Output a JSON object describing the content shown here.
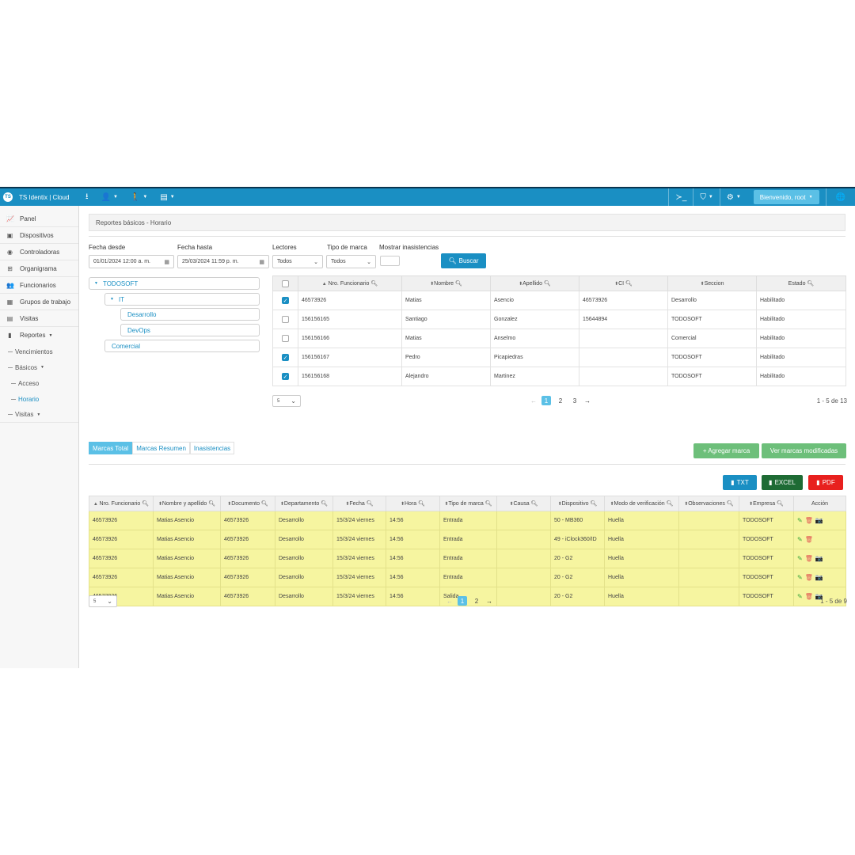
{
  "app": {
    "title": "TS Identix | Cloud",
    "logo_text": "TS"
  },
  "topbar": {
    "welcome": "Bienvenido, root",
    "nav_icons": [
      "download-icon",
      "user-cog-icon",
      "walk-arrow-icon",
      "id-card-icon"
    ],
    "right_icons": [
      "terminal-icon",
      "shield-icon",
      "gear-icon",
      "globe-icon"
    ]
  },
  "sidebar": {
    "items": [
      "Panel",
      "Dispositivos",
      "Controladoras",
      "Organigrama",
      "Funcionarios",
      "Grupos de trabajo",
      "Visitas"
    ],
    "reportes": "Reportes",
    "vencimientos": "Vencimientos",
    "basicos": "Básicos",
    "acceso": "Acceso",
    "horario": "Horario",
    "visitas_sub": "Visitas"
  },
  "breadcrumb": "Reportes básicos - Horario",
  "filters": {
    "fecha_desde_label": "Fecha desde",
    "fecha_desde": "01/01/2024 12:00 a. m.",
    "fecha_hasta_label": "Fecha hasta",
    "fecha_hasta": "25/03/2024 11:59 p. m.",
    "lectores_label": "Lectores",
    "lectores": "Todos",
    "tipo_label": "Tipo de marca",
    "tipo": "Todos",
    "inasist_label": "Mostrar inasistencias",
    "buscar": "Buscar"
  },
  "tree": {
    "root": "TODOSOFT",
    "it": "IT",
    "desarrollo": "Desarrollo",
    "devops": "DevOps",
    "comercial": "Comercial"
  },
  "employees": {
    "headers": [
      "Nro. Funcionario",
      "Nombre",
      "Apellido",
      "CI",
      "Seccion",
      "Estado"
    ],
    "rows": [
      {
        "checked": true,
        "nro": "46573926",
        "nombre": "Matias",
        "apellido": "Asencio",
        "ci": "46573926",
        "seccion": "Desarrollo",
        "estado": "Habilitado"
      },
      {
        "checked": false,
        "nro": "156156165",
        "nombre": "Santiago",
        "apellido": "Gonzalez",
        "ci": "15644894",
        "seccion": "TODOSOFT",
        "estado": "Habilitado"
      },
      {
        "checked": false,
        "nro": "156156166",
        "nombre": "Matias",
        "apellido": "Anselmo",
        "ci": "",
        "seccion": "Comercial",
        "estado": "Habilitado"
      },
      {
        "checked": true,
        "nro": "156156167",
        "nombre": "Pedro",
        "apellido": "Picapiedras",
        "ci": "",
        "seccion": "TODOSOFT",
        "estado": "Habilitado"
      },
      {
        "checked": true,
        "nro": "156156168",
        "nombre": "Alejandro",
        "apellido": "Martinez",
        "ci": "",
        "seccion": "TODOSOFT",
        "estado": "Habilitado"
      }
    ],
    "page_size": "5",
    "pages": [
      "1",
      "2",
      "3"
    ],
    "count": "1 - 5 de 13"
  },
  "tabs": [
    "Marcas Total",
    "Marcas Resumen",
    "Inasistencias"
  ],
  "buttons": {
    "agregar": "+ Agregar marca",
    "ver_modificadas": "Ver marcas modificadas",
    "txt": "TXT",
    "excel": "EXCEL",
    "pdf": "PDF"
  },
  "colors": {
    "primary": "#1a8fc3",
    "green": "#6dbf7a",
    "excel": "#1e6b34",
    "pdf": "#e8201e",
    "highlight": "#f6f5a0"
  },
  "marks": {
    "headers": [
      "Nro. Funcionario",
      "Nombre y apellido",
      "Documento",
      "Departamento",
      "Fecha",
      "Hora",
      "Tipo de marca",
      "Causa",
      "Dispositivo",
      "Modo de verificación",
      "Observaciones",
      "Empresa",
      "Acción"
    ],
    "rows": [
      {
        "nro": "46573926",
        "nombre": "Matias Asencio",
        "doc": "46573926",
        "depto": "Desarrollo",
        "fecha": "15/3/24 viernes",
        "hora": "14:56",
        "tipo": "Entrada",
        "causa": "",
        "disp": "50 - MB360",
        "modo": "Huella",
        "obs": "",
        "empresa": "TODOSOFT",
        "cam": true
      },
      {
        "nro": "46573926",
        "nombre": "Matias Asencio",
        "doc": "46573926",
        "depto": "Desarrollo",
        "fecha": "15/3/24 viernes",
        "hora": "14:56",
        "tipo": "Entrada",
        "causa": "",
        "disp": "49 - iClock360/ID",
        "modo": "Huella",
        "obs": "",
        "empresa": "TODOSOFT",
        "cam": false
      },
      {
        "nro": "46573926",
        "nombre": "Matias Asencio",
        "doc": "46573926",
        "depto": "Desarrollo",
        "fecha": "15/3/24 viernes",
        "hora": "14:56",
        "tipo": "Entrada",
        "causa": "",
        "disp": "20 - G2",
        "modo": "Huella",
        "obs": "",
        "empresa": "TODOSOFT",
        "cam": true
      },
      {
        "nro": "46573926",
        "nombre": "Matias Asencio",
        "doc": "46573926",
        "depto": "Desarrollo",
        "fecha": "15/3/24 viernes",
        "hora": "14:56",
        "tipo": "Entrada",
        "causa": "",
        "disp": "20 - G2",
        "modo": "Huella",
        "obs": "",
        "empresa": "TODOSOFT",
        "cam": true
      },
      {
        "nro": "46573926",
        "nombre": "Matias Asencio",
        "doc": "46573926",
        "depto": "Desarrollo",
        "fecha": "15/3/24 viernes",
        "hora": "14:56",
        "tipo": "Salida",
        "causa": "",
        "disp": "20 - G2",
        "modo": "Huella",
        "obs": "",
        "empresa": "TODOSOFT",
        "cam": true
      }
    ],
    "page_size": "5",
    "pages": [
      "1",
      "2"
    ],
    "count": "1 - 5 de 9"
  }
}
